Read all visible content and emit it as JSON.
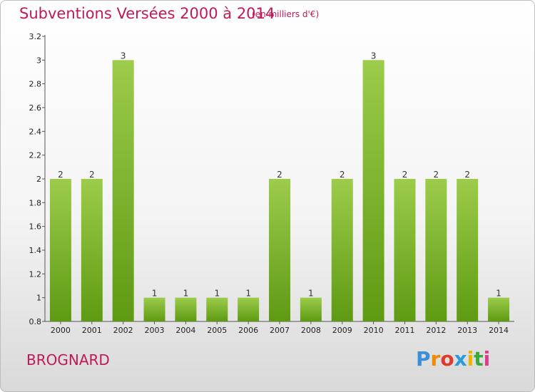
{
  "title": "Subventions Versées 2000 à 2014",
  "unit": "(en milliers d'€)",
  "commune": "BROGNARD",
  "logo": {
    "letters": [
      "P",
      "r",
      "o",
      "x",
      "i",
      "t",
      "i"
    ],
    "colors": [
      "#3a8fd6",
      "#f08a00",
      "#e03a2a",
      "#2a9bd6",
      "#f0b400",
      "#3aaa3a",
      "#e03a8a"
    ]
  },
  "colors": {
    "accent": "#c0185a",
    "bar_top": "#9ccc4a",
    "bar_bottom": "#5e9a12"
  },
  "chart_data": {
    "type": "bar",
    "title": "Subventions Versées 2000 à 2014",
    "subtitle": "(en milliers d'€)",
    "xlabel": "",
    "ylabel": "",
    "categories": [
      "2000",
      "2001",
      "2002",
      "2003",
      "2004",
      "2005",
      "2006",
      "2007",
      "2008",
      "2009",
      "2010",
      "2011",
      "2012",
      "2013",
      "2014"
    ],
    "values": [
      2,
      2,
      3,
      1,
      1,
      1,
      1,
      2,
      1,
      2,
      3,
      2,
      2,
      2,
      1
    ],
    "data_labels": [
      "2",
      "2",
      "3",
      "1",
      "1",
      "1",
      "1",
      "2",
      "1",
      "2",
      "3",
      "2",
      "2",
      "2",
      "1"
    ],
    "ylim": [
      0.8,
      3.2
    ],
    "yticks": [
      0.8,
      1,
      1.2,
      1.4,
      1.6,
      1.8,
      2,
      2.2,
      2.4,
      2.6,
      2.8,
      3,
      3.2
    ],
    "ytick_labels": [
      "0.8",
      "1",
      "1.2",
      "1.4",
      "1.6",
      "1.8",
      "2",
      "2.2",
      "2.4",
      "2.6",
      "2.8",
      "3",
      "3.2"
    ],
    "grid": false,
    "legend": "none"
  }
}
